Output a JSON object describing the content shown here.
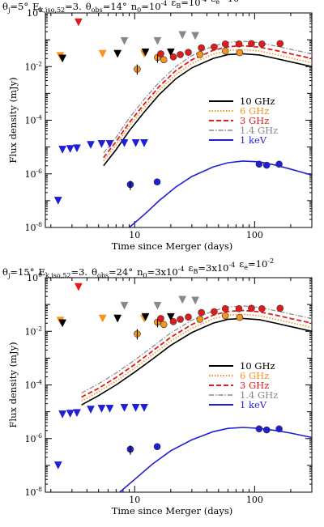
{
  "chart_data": [
    {
      "type": "line",
      "title": "θj=5° Ek,iso,52=3. θobs=14° n0=10^-4 εB=10^-4 εe=10^-1",
      "title_parts": {
        "theta_j": "θj=5°",
        "e_k": "Ek,iso,52=3.",
        "theta_obs": "θobs=14°",
        "n0": "n0=10^-4",
        "eps_b": "εB=10^-4",
        "eps_e": "εe=10^-1"
      },
      "xlabel": "Time since Merger (days)",
      "ylabel": "Flux density (mJy)",
      "xscale": "log",
      "yscale": "log",
      "xlim": [
        1.8,
        300
      ],
      "ylim": [
        1e-08,
        1
      ],
      "xtick_labels": [
        "10",
        "100"
      ],
      "ytick_labels": [
        "10^-8",
        "10^-6",
        "10^-4",
        "10^-2",
        "10^0"
      ],
      "legend": {
        "placement": "right",
        "entries": [
          "10 GHz",
          "6 GHz",
          "3 GHz",
          "1.4 GHz",
          "1 keV"
        ]
      },
      "series": [
        {
          "name": "10 GHz",
          "color": "#000000",
          "dash": "solid",
          "x": [
            5.5,
            7,
            9,
            12,
            16,
            22,
            30,
            45,
            60,
            80,
            110,
            150,
            200,
            300
          ],
          "y": [
            2e-06,
            8e-06,
            4e-05,
            0.0002,
            0.0009,
            0.0035,
            0.009,
            0.02,
            0.028,
            0.03,
            0.027,
            0.02,
            0.015,
            0.01
          ]
        },
        {
          "name": "6 GHz",
          "color": "#f7941d",
          "dash": "dot",
          "x": [
            5.5,
            7,
            9,
            12,
            16,
            22,
            30,
            45,
            60,
            80,
            110,
            150,
            200,
            300
          ],
          "y": [
            3e-06,
            1.2e-05,
            6e-05,
            0.0003,
            0.0013,
            0.005,
            0.013,
            0.029,
            0.04,
            0.043,
            0.038,
            0.028,
            0.021,
            0.014
          ]
        },
        {
          "name": "3 GHz",
          "color": "#e31a1c",
          "dash": "dash",
          "x": [
            5.5,
            7,
            9,
            12,
            16,
            22,
            30,
            45,
            60,
            80,
            110,
            150,
            200,
            300
          ],
          "y": [
            4e-06,
            1.6e-05,
            8e-05,
            0.0004,
            0.0018,
            0.007,
            0.018,
            0.04,
            0.055,
            0.06,
            0.053,
            0.04,
            0.03,
            0.02
          ]
        },
        {
          "name": "1.4 GHz",
          "color": "#888888",
          "dash": "dashdot",
          "x": [
            5.5,
            7,
            9,
            12,
            16,
            22,
            30,
            45,
            60,
            80,
            110,
            150,
            200,
            300
          ],
          "y": [
            6e-06,
            2.3e-05,
            0.00012,
            0.0006,
            0.0026,
            0.01,
            0.026,
            0.058,
            0.08,
            0.088,
            0.078,
            0.058,
            0.044,
            0.03
          ]
        },
        {
          "name": "1 keV",
          "color": "#1f1fd6",
          "dash": "solid",
          "x": [
            9,
            12,
            16,
            22,
            30,
            45,
            60,
            80,
            110,
            150,
            200,
            300
          ],
          "y": [
            1e-08,
            3e-08,
            1e-07,
            3.2e-07,
            8e-07,
            1.8e-06,
            2.6e-06,
            3e-06,
            2.8e-06,
            2.1e-06,
            1.5e-06,
            9e-07
          ]
        }
      ],
      "observations": [
        {
          "kind": "upper_limit",
          "color": "#e31a1c",
          "x": 3.4,
          "y": 0.45
        },
        {
          "kind": "upper_limit",
          "color": "#f7941d",
          "x": 2.4,
          "y": 0.025
        },
        {
          "kind": "upper_limit",
          "color": "#000000",
          "x": 2.5,
          "y": 0.02
        },
        {
          "kind": "upper_limit",
          "color": "#f7941d",
          "x": 5.4,
          "y": 0.03
        },
        {
          "kind": "upper_limit",
          "color": "#888888",
          "x": 8.2,
          "y": 0.09
        },
        {
          "kind": "upper_limit",
          "color": "#000000",
          "x": 7.2,
          "y": 0.03
        },
        {
          "kind": "upper_limit",
          "color": "#f7941d",
          "x": 12,
          "y": 0.03
        },
        {
          "kind": "upper_limit",
          "color": "#000000",
          "x": 12.3,
          "y": 0.034
        },
        {
          "kind": "upper_limit",
          "color": "#888888",
          "x": 15.5,
          "y": 0.09
        },
        {
          "kind": "upper_limit",
          "color": "#888888",
          "x": 25,
          "y": 0.15
        },
        {
          "kind": "upper_limit",
          "color": "#888888",
          "x": 32,
          "y": 0.14
        },
        {
          "kind": "upper_limit",
          "color": "#000000",
          "x": 20,
          "y": 0.034
        },
        {
          "kind": "upper_limit",
          "color": "#1f1fd6",
          "x": 2.3,
          "y": 1e-07
        },
        {
          "kind": "upper_limit",
          "color": "#1f1fd6",
          "x": 2.5,
          "y": 8e-06
        },
        {
          "kind": "upper_limit",
          "color": "#1f1fd6",
          "x": 2.9,
          "y": 8.5e-06
        },
        {
          "kind": "upper_limit",
          "color": "#1f1fd6",
          "x": 3.3,
          "y": 9e-06
        },
        {
          "kind": "upper_limit",
          "color": "#1f1fd6",
          "x": 4.3,
          "y": 1.2e-05
        },
        {
          "kind": "upper_limit",
          "color": "#1f1fd6",
          "x": 5.3,
          "y": 1.3e-05
        },
        {
          "kind": "upper_limit",
          "color": "#1f1fd6",
          "x": 6.2,
          "y": 1.3e-05
        },
        {
          "kind": "upper_limit",
          "color": "#1f1fd6",
          "x": 8.2,
          "y": 1.4e-05
        },
        {
          "kind": "upper_limit",
          "color": "#1f1fd6",
          "x": 10.2,
          "y": 1.4e-05
        },
        {
          "kind": "upper_limit",
          "color": "#1f1fd6",
          "x": 12,
          "y": 1.4e-05
        },
        {
          "kind": "detection",
          "color": "#f7941d",
          "x": 10.5,
          "y": 0.008,
          "err": [
            0.005,
            0.012
          ]
        },
        {
          "kind": "detection",
          "color": "#f7941d",
          "x": 15.5,
          "y": 0.022,
          "err": [
            0.014,
            0.03
          ]
        },
        {
          "kind": "detection",
          "color": "#e31a1c",
          "x": 16.5,
          "y": 0.03
        },
        {
          "kind": "detection",
          "color": "#f7941d",
          "x": 17.5,
          "y": 0.018
        },
        {
          "kind": "detection",
          "color": "#e31a1c",
          "x": 21,
          "y": 0.023
        },
        {
          "kind": "detection",
          "color": "#e31a1c",
          "x": 24,
          "y": 0.028
        },
        {
          "kind": "detection",
          "color": "#e31a1c",
          "x": 28,
          "y": 0.034
        },
        {
          "kind": "detection",
          "color": "#f7941d",
          "x": 35,
          "y": 0.028
        },
        {
          "kind": "detection",
          "color": "#e31a1c",
          "x": 36,
          "y": 0.05
        },
        {
          "kind": "detection",
          "color": "#e31a1c",
          "x": 46,
          "y": 0.054
        },
        {
          "kind": "detection",
          "color": "#e31a1c",
          "x": 57,
          "y": 0.07
        },
        {
          "kind": "detection",
          "color": "#f7941d",
          "x": 57,
          "y": 0.038
        },
        {
          "kind": "detection",
          "color": "#e31a1c",
          "x": 74,
          "y": 0.07
        },
        {
          "kind": "detection",
          "color": "#f7941d",
          "x": 75,
          "y": 0.033
        },
        {
          "kind": "detection",
          "color": "#e31a1c",
          "x": 94,
          "y": 0.072
        },
        {
          "kind": "detection",
          "color": "#e31a1c",
          "x": 115,
          "y": 0.07
        },
        {
          "kind": "detection",
          "color": "#e31a1c",
          "x": 163,
          "y": 0.072
        },
        {
          "kind": "detection",
          "color": "#1f1fd6",
          "x": 9.2,
          "y": 4e-07,
          "err": [
            2.5e-07,
            5.5e-07
          ]
        },
        {
          "kind": "detection",
          "color": "#1f1fd6",
          "x": 15.4,
          "y": 5e-07
        },
        {
          "kind": "detection",
          "color": "#1f1fd6",
          "x": 109,
          "y": 2.3e-06
        },
        {
          "kind": "detection",
          "color": "#1f1fd6",
          "x": 126,
          "y": 2.1e-06
        },
        {
          "kind": "detection",
          "color": "#1f1fd6",
          "x": 160,
          "y": 2.3e-06
        }
      ]
    },
    {
      "type": "line",
      "title": "θj=15° Ek,iso,52=3. θobs=24° n0=3x10^-4 εB=3x10^-4 εe=10^-2",
      "title_parts": {
        "theta_j": "θj=15°",
        "e_k": "Ek,iso,52=3.",
        "theta_obs": "θobs=24°",
        "n0": "n0=3x10^-4",
        "eps_b": "εB=3x10^-4",
        "eps_e": "εe=10^-2"
      },
      "xlabel": "Time since Merger (days)",
      "ylabel": "Flux density (mJy)",
      "xscale": "log",
      "yscale": "log",
      "xlim": [
        1.8,
        300
      ],
      "ylim": [
        1e-08,
        1
      ],
      "xtick_labels": [
        "10",
        "100"
      ],
      "ytick_labels": [
        "10^-8",
        "10^-6",
        "10^-4",
        "10^-2",
        "10^0"
      ],
      "legend": {
        "placement": "right",
        "entries": [
          "10 GHz",
          "6 GHz",
          "3 GHz",
          "1.4 GHz",
          "1 keV"
        ]
      },
      "series": [
        {
          "name": "10 GHz",
          "color": "#000000",
          "dash": "solid",
          "x": [
            3.6,
            5,
            7,
            10,
            14,
            20,
            30,
            45,
            60,
            80,
            110,
            150,
            200,
            300
          ],
          "y": [
            1.8e-05,
            4e-05,
            0.0001,
            0.0003,
            0.0009,
            0.003,
            0.009,
            0.02,
            0.028,
            0.03,
            0.027,
            0.02,
            0.015,
            0.01
          ]
        },
        {
          "name": "6 GHz",
          "color": "#f7941d",
          "dash": "dot",
          "x": [
            3.6,
            5,
            7,
            10,
            14,
            20,
            30,
            45,
            60,
            80,
            110,
            150,
            200,
            300
          ],
          "y": [
            2.5e-05,
            5.5e-05,
            0.00014,
            0.00042,
            0.0013,
            0.0043,
            0.013,
            0.029,
            0.04,
            0.043,
            0.038,
            0.028,
            0.021,
            0.014
          ]
        },
        {
          "name": "3 GHz",
          "color": "#e31a1c",
          "dash": "dash",
          "x": [
            3.6,
            5,
            7,
            10,
            14,
            20,
            30,
            45,
            60,
            80,
            110,
            150,
            200,
            300
          ],
          "y": [
            3.5e-05,
            7.5e-05,
            0.00019,
            0.00058,
            0.0018,
            0.006,
            0.018,
            0.04,
            0.055,
            0.06,
            0.053,
            0.04,
            0.03,
            0.02
          ]
        },
        {
          "name": "1.4 GHz",
          "color": "#888888",
          "dash": "dashdot",
          "x": [
            3.6,
            5,
            7,
            10,
            14,
            20,
            30,
            45,
            60,
            80,
            110,
            150,
            200,
            300
          ],
          "y": [
            5e-05,
            0.00011,
            0.00028,
            0.00084,
            0.0026,
            0.0087,
            0.026,
            0.058,
            0.08,
            0.088,
            0.078,
            0.058,
            0.044,
            0.03
          ]
        },
        {
          "name": "1 keV",
          "color": "#1f1fd6",
          "dash": "solid",
          "x": [
            7.5,
            10,
            14,
            20,
            30,
            45,
            60,
            80,
            110,
            150,
            200,
            300
          ],
          "y": [
            1e-08,
            3e-08,
            1.1e-07,
            3.5e-07,
            9e-07,
            1.8e-06,
            2.4e-06,
            2.6e-06,
            2.4e-06,
            2e-06,
            1.6e-06,
            1.1e-06
          ]
        }
      ],
      "observations": [
        {
          "kind": "upper_limit",
          "color": "#e31a1c",
          "x": 3.4,
          "y": 0.45
        },
        {
          "kind": "upper_limit",
          "color": "#f7941d",
          "x": 2.4,
          "y": 0.025
        },
        {
          "kind": "upper_limit",
          "color": "#000000",
          "x": 2.5,
          "y": 0.02
        },
        {
          "kind": "upper_limit",
          "color": "#f7941d",
          "x": 5.4,
          "y": 0.03
        },
        {
          "kind": "upper_limit",
          "color": "#888888",
          "x": 8.2,
          "y": 0.09
        },
        {
          "kind": "upper_limit",
          "color": "#000000",
          "x": 7.2,
          "y": 0.03
        },
        {
          "kind": "upper_limit",
          "color": "#f7941d",
          "x": 12,
          "y": 0.03
        },
        {
          "kind": "upper_limit",
          "color": "#000000",
          "x": 12.3,
          "y": 0.034
        },
        {
          "kind": "upper_limit",
          "color": "#888888",
          "x": 15.5,
          "y": 0.09
        },
        {
          "kind": "upper_limit",
          "color": "#888888",
          "x": 25,
          "y": 0.15
        },
        {
          "kind": "upper_limit",
          "color": "#888888",
          "x": 32,
          "y": 0.14
        },
        {
          "kind": "upper_limit",
          "color": "#000000",
          "x": 20,
          "y": 0.034
        },
        {
          "kind": "upper_limit",
          "color": "#1f1fd6",
          "x": 2.3,
          "y": 1e-07
        },
        {
          "kind": "upper_limit",
          "color": "#1f1fd6",
          "x": 2.5,
          "y": 8e-06
        },
        {
          "kind": "upper_limit",
          "color": "#1f1fd6",
          "x": 2.9,
          "y": 8.5e-06
        },
        {
          "kind": "upper_limit",
          "color": "#1f1fd6",
          "x": 3.3,
          "y": 9e-06
        },
        {
          "kind": "upper_limit",
          "color": "#1f1fd6",
          "x": 4.3,
          "y": 1.2e-05
        },
        {
          "kind": "upper_limit",
          "color": "#1f1fd6",
          "x": 5.3,
          "y": 1.3e-05
        },
        {
          "kind": "upper_limit",
          "color": "#1f1fd6",
          "x": 6.2,
          "y": 1.3e-05
        },
        {
          "kind": "upper_limit",
          "color": "#1f1fd6",
          "x": 8.2,
          "y": 1.4e-05
        },
        {
          "kind": "upper_limit",
          "color": "#1f1fd6",
          "x": 10.2,
          "y": 1.4e-05
        },
        {
          "kind": "upper_limit",
          "color": "#1f1fd6",
          "x": 12,
          "y": 1.4e-05
        },
        {
          "kind": "detection",
          "color": "#f7941d",
          "x": 10.5,
          "y": 0.008,
          "err": [
            0.005,
            0.012
          ]
        },
        {
          "kind": "detection",
          "color": "#f7941d",
          "x": 15.5,
          "y": 0.022,
          "err": [
            0.014,
            0.03
          ]
        },
        {
          "kind": "detection",
          "color": "#e31a1c",
          "x": 16.5,
          "y": 0.03
        },
        {
          "kind": "detection",
          "color": "#f7941d",
          "x": 17.5,
          "y": 0.018
        },
        {
          "kind": "detection",
          "color": "#e31a1c",
          "x": 21,
          "y": 0.023
        },
        {
          "kind": "detection",
          "color": "#e31a1c",
          "x": 24,
          "y": 0.028
        },
        {
          "kind": "detection",
          "color": "#e31a1c",
          "x": 28,
          "y": 0.034
        },
        {
          "kind": "detection",
          "color": "#f7941d",
          "x": 35,
          "y": 0.028
        },
        {
          "kind": "detection",
          "color": "#e31a1c",
          "x": 36,
          "y": 0.05
        },
        {
          "kind": "detection",
          "color": "#e31a1c",
          "x": 46,
          "y": 0.054
        },
        {
          "kind": "detection",
          "color": "#e31a1c",
          "x": 57,
          "y": 0.07
        },
        {
          "kind": "detection",
          "color": "#f7941d",
          "x": 57,
          "y": 0.038
        },
        {
          "kind": "detection",
          "color": "#e31a1c",
          "x": 74,
          "y": 0.07
        },
        {
          "kind": "detection",
          "color": "#f7941d",
          "x": 75,
          "y": 0.033
        },
        {
          "kind": "detection",
          "color": "#e31a1c",
          "x": 94,
          "y": 0.072
        },
        {
          "kind": "detection",
          "color": "#e31a1c",
          "x": 115,
          "y": 0.07
        },
        {
          "kind": "detection",
          "color": "#e31a1c",
          "x": 163,
          "y": 0.072
        },
        {
          "kind": "detection",
          "color": "#1f1fd6",
          "x": 9.2,
          "y": 4e-07,
          "err": [
            2.5e-07,
            5.5e-07
          ]
        },
        {
          "kind": "detection",
          "color": "#1f1fd6",
          "x": 15.4,
          "y": 5e-07
        },
        {
          "kind": "detection",
          "color": "#1f1fd6",
          "x": 109,
          "y": 2.3e-06
        },
        {
          "kind": "detection",
          "color": "#1f1fd6",
          "x": 126,
          "y": 2.1e-06
        },
        {
          "kind": "detection",
          "color": "#1f1fd6",
          "x": 160,
          "y": 2.3e-06
        }
      ]
    }
  ]
}
